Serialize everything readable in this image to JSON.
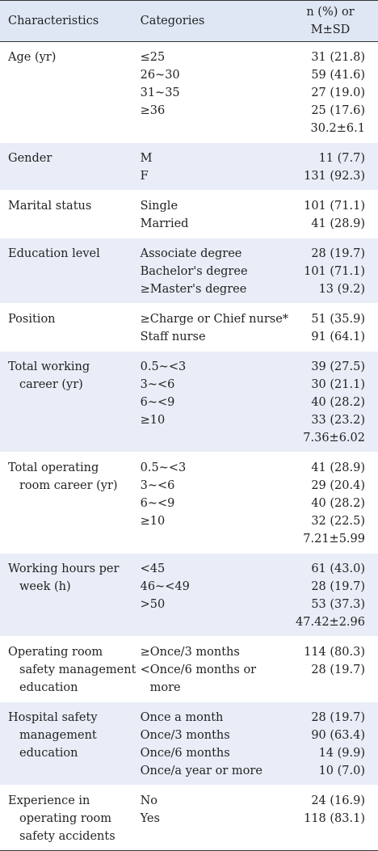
{
  "header": {
    "characteristics": "Characteristics",
    "categories": "Categories",
    "value_line1": "n (%) or",
    "value_line2": "M±SD"
  },
  "rows": [
    {
      "characteristic": [
        "Age (yr)"
      ],
      "categories": [
        "≤25",
        "26~30",
        "31~35",
        "≥36",
        ""
      ],
      "values": [
        "31 (21.8)",
        "59 (41.6)",
        "27 (19.0)",
        "25 (17.6)",
        "30.2±6.1"
      ]
    },
    {
      "characteristic": [
        "Gender"
      ],
      "categories": [
        "M",
        "F"
      ],
      "values": [
        "11 (7.7)",
        "131 (92.3)"
      ]
    },
    {
      "characteristic": [
        "Marital status"
      ],
      "categories": [
        "Single",
        "Married"
      ],
      "values": [
        "101 (71.1)",
        "41 (28.9)"
      ]
    },
    {
      "characteristic": [
        "Education level"
      ],
      "categories": [
        "Associate degree",
        "Bachelor's degree",
        "≥Master's degree"
      ],
      "values": [
        "28 (19.7)",
        "101 (71.1)",
        "13 (9.2)"
      ]
    },
    {
      "characteristic": [
        "Position"
      ],
      "categories": [
        "≥Charge or Chief nurse*",
        "Staff nurse"
      ],
      "values": [
        "51 (35.9)",
        "91 (64.1)"
      ]
    },
    {
      "characteristic": [
        "Total working",
        "career (yr)"
      ],
      "categories": [
        "0.5~<3",
        "3~<6",
        "6~<9",
        "≥10",
        ""
      ],
      "values": [
        "39 (27.5)",
        "30 (21.1)",
        "40 (28.2)",
        "33 (23.2)",
        "7.36±6.02"
      ]
    },
    {
      "characteristic": [
        "Total operating",
        "room career (yr)"
      ],
      "categories": [
        "0.5~<3",
        "3~<6",
        "6~<9",
        "≥10",
        ""
      ],
      "values": [
        "41 (28.9)",
        "29 (20.4)",
        "40 (28.2)",
        "32 (22.5)",
        "7.21±5.99"
      ]
    },
    {
      "characteristic": [
        "Working hours per",
        "week (h)"
      ],
      "categories": [
        "<45",
        "46~<49",
        ">50",
        ""
      ],
      "values": [
        "61 (43.0)",
        "28 (19.7)",
        "53 (37.3)",
        "47.42±2.96"
      ]
    },
    {
      "characteristic": [
        "Operating room",
        "safety management",
        "education"
      ],
      "categories": [
        "≥Once/3 months",
        "<Once/6 months or",
        "more"
      ],
      "values": [
        "114 (80.3)",
        "28 (19.7)",
        ""
      ]
    },
    {
      "characteristic": [
        "Hospital safety",
        "management",
        "education"
      ],
      "categories": [
        "Once a month",
        "Once/3 months",
        "Once/6 months",
        "Once/a year or more"
      ],
      "values": [
        "28 (19.7)",
        "90 (63.4)",
        "14 (9.9)",
        "10 (7.0)"
      ]
    },
    {
      "characteristic": [
        "Experience in",
        "operating room",
        "safety accidents"
      ],
      "categories": [
        "No",
        "Yes"
      ],
      "values": [
        "24 (16.9)",
        "118 (83.1)"
      ]
    }
  ]
}
